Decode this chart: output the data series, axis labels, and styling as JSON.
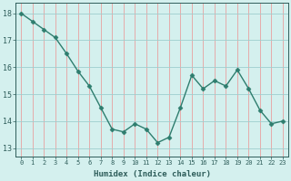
{
  "x": [
    0,
    1,
    2,
    3,
    4,
    5,
    6,
    7,
    8,
    9,
    10,
    11,
    12,
    13,
    14,
    15,
    16,
    17,
    18,
    19,
    20,
    21,
    22,
    23
  ],
  "y": [
    18.0,
    17.7,
    17.4,
    17.1,
    16.5,
    15.85,
    15.3,
    14.5,
    13.7,
    13.6,
    13.9,
    13.7,
    13.2,
    13.4,
    14.5,
    15.7,
    15.2,
    15.5,
    15.3,
    15.9,
    15.2,
    14.4,
    13.9,
    14.0
  ],
  "xlabel": "Humidex (Indice chaleur)",
  "yticks": [
    13,
    14,
    15,
    16,
    17,
    18
  ],
  "xtick_labels": [
    "0",
    "1",
    "2",
    "3",
    "4",
    "5",
    "6",
    "7",
    "8",
    "9",
    "10",
    "11",
    "12",
    "13",
    "14",
    "15",
    "16",
    "17",
    "18",
    "19",
    "20",
    "21",
    "22",
    "23"
  ],
  "ylim": [
    12.7,
    18.4
  ],
  "xlim": [
    -0.5,
    23.5
  ],
  "line_color": "#2e7d6e",
  "marker_color": "#2e7d6e",
  "bg_color": "#d4f0ee",
  "grid_color_h": "#9ecece",
  "grid_color_v": "#e8a0a0",
  "text_color": "#2e5d5a",
  "xlabel_color": "#2e5d5a"
}
